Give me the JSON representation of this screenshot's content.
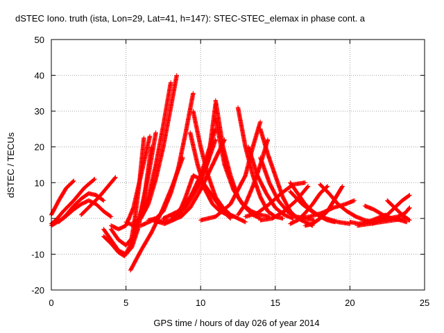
{
  "chart_data": {
    "type": "scatter",
    "title": "dSTEC Iono. truth (ista, Lon=29, Lat=41, h=147): STEC-STEC_elemax in phase cont. a",
    "xlabel": "GPS time / hours of day 026 of year 2014",
    "ylabel": "dSTEC  / TECUs",
    "xlim": [
      0,
      25
    ],
    "ylim": [
      -20,
      50
    ],
    "xticks": [
      "0",
      "5",
      "10",
      "15",
      "20",
      "25"
    ],
    "yticks": [
      "-20",
      "-10",
      "0",
      "10",
      "20",
      "30",
      "40",
      "50"
    ],
    "grid": true,
    "marker": "+",
    "color": "#ff0000",
    "series": [
      {
        "x": [
          0.0,
          0.5,
          1.0,
          1.5
        ],
        "y": [
          1.0,
          5.0,
          8.5,
          10.5
        ]
      },
      {
        "x": [
          0.0,
          0.3,
          0.8,
          1.5,
          2.2,
          2.9
        ],
        "y": [
          -1.5,
          -0.5,
          2.0,
          5.0,
          8.5,
          11.0
        ]
      },
      {
        "x": [
          0.5,
          1.0,
          1.5,
          2.0,
          2.5,
          3.0,
          3.5
        ],
        "y": [
          -1.0,
          1.0,
          3.5,
          5.5,
          7.0,
          6.5,
          5.0
        ]
      },
      {
        "x": [
          2.0,
          2.6,
          3.2,
          3.8,
          4.3
        ],
        "y": [
          1.0,
          3.5,
          6.0,
          9.0,
          11.5
        ]
      },
      {
        "x": [
          0.0,
          0.8,
          1.5,
          2.0,
          2.5,
          3.0,
          3.5,
          4.0
        ],
        "y": [
          -2.0,
          0.0,
          2.5,
          4.0,
          5.0,
          4.0,
          2.0,
          0.5
        ]
      },
      {
        "x": [
          3.5,
          4.0,
          4.5,
          5.0,
          5.4,
          5.8,
          6.2,
          6.7
        ],
        "y": [
          -3.0,
          -6.0,
          -9.0,
          -10.0,
          -8.0,
          -3.0,
          5.0,
          20.0
        ]
      },
      {
        "x": [
          3.5,
          4.0,
          4.5,
          4.9,
          5.3,
          5.6,
          5.9,
          6.2
        ],
        "y": [
          -5.0,
          -7.0,
          -9.5,
          -10.5,
          -7.5,
          0.0,
          10.0,
          22.5
        ]
      },
      {
        "x": [
          4.0,
          4.5,
          5.0,
          5.5,
          6.0,
          6.5,
          7.0
        ],
        "y": [
          -3.0,
          -6.0,
          -7.5,
          -5.0,
          2.0,
          12.0,
          24.0
        ]
      },
      {
        "x": [
          4.0,
          4.5,
          5.0,
          5.5,
          6.0,
          6.6
        ],
        "y": [
          -2.0,
          -3.0,
          -2.0,
          3.0,
          12.0,
          23.0
        ]
      },
      {
        "x": [
          5.0,
          5.5,
          6.0,
          6.5,
          7.0,
          7.5,
          8.0
        ],
        "y": [
          -1.0,
          -2.0,
          0.5,
          6.0,
          15.0,
          26.0,
          38.0
        ]
      },
      {
        "x": [
          5.5,
          6.0,
          6.5,
          7.0,
          7.5,
          8.0,
          8.4
        ],
        "y": [
          -1.0,
          0.0,
          4.0,
          11.0,
          20.0,
          31.0,
          40.0
        ]
      },
      {
        "x": [
          6.5,
          7.0,
          7.5,
          8.0,
          8.5,
          9.0,
          9.5
        ],
        "y": [
          -0.5,
          0.0,
          2.0,
          7.0,
          14.0,
          24.0,
          35.0
        ]
      },
      {
        "x": [
          5.3,
          6.0,
          6.7,
          7.4,
          8.1,
          8.8
        ],
        "y": [
          -14.5,
          -9.0,
          -4.0,
          2.0,
          9.0,
          17.0
        ]
      },
      {
        "x": [
          6.0,
          6.8,
          7.6,
          8.4,
          9.2,
          10.0,
          11.0
        ],
        "y": [
          -2.0,
          -0.5,
          -1.5,
          0.0,
          5.0,
          12.0,
          25.0
        ]
      },
      {
        "x": [
          7.0,
          8.0,
          9.0,
          10.0,
          11.0
        ],
        "y": [
          -1.0,
          -0.5,
          3.0,
          10.0,
          22.0
        ]
      },
      {
        "x": [
          8.0,
          8.7,
          9.3,
          10.0,
          10.8,
          11.6
        ],
        "y": [
          -0.5,
          0.5,
          3.0,
          8.0,
          15.0,
          22.0
        ]
      },
      {
        "x": [
          7.5,
          8.5,
          9.5,
          10.5,
          11.0
        ],
        "y": [
          0.0,
          2.0,
          7.0,
          16.0,
          32.0
        ]
      },
      {
        "x": [
          8.0,
          8.5,
          9.0,
          9.5,
          10.0,
          10.5,
          11.0,
          11.5,
          12.0
        ],
        "y": [
          0.5,
          1.0,
          6.0,
          12.0,
          11.0,
          8.0,
          5.0,
          2.0,
          0.0
        ]
      },
      {
        "x": [
          9.3,
          9.8,
          10.3,
          10.8,
          11.3,
          11.8,
          12.3
        ],
        "y": [
          24.0,
          15.0,
          8.0,
          4.0,
          2.0,
          1.0,
          0.5
        ]
      },
      {
        "x": [
          9.5,
          10.0,
          10.5,
          11.0,
          11.5,
          12.0,
          12.5,
          13.0
        ],
        "y": [
          30.0,
          20.0,
          12.0,
          6.0,
          3.0,
          1.0,
          0.0,
          -1.0
        ]
      },
      {
        "x": [
          11.0,
          11.5,
          12.0,
          12.5,
          13.0,
          13.5,
          14.0
        ],
        "y": [
          33.0,
          20.0,
          12.0,
          6.0,
          3.0,
          1.0,
          0.0
        ]
      },
      {
        "x": [
          11.0,
          11.6,
          12.2,
          12.8,
          13.4,
          14.0,
          14.6
        ],
        "y": [
          28.0,
          15.0,
          8.0,
          4.0,
          2.0,
          1.0,
          0.5
        ]
      },
      {
        "x": [
          12.5,
          13.0,
          13.5,
          14.0,
          14.5,
          15.0,
          15.5
        ],
        "y": [
          31.0,
          20.0,
          12.0,
          6.0,
          2.0,
          0.5,
          0.0
        ]
      },
      {
        "x": [
          13.2,
          13.8,
          14.4,
          15.0,
          15.6,
          16.2
        ],
        "y": [
          20.0,
          12.0,
          7.0,
          3.0,
          1.0,
          0.0
        ]
      },
      {
        "x": [
          10.0,
          11.0,
          12.0,
          13.0,
          13.5,
          14.0
        ],
        "y": [
          -0.5,
          0.5,
          4.0,
          12.0,
          20.0,
          27.0
        ]
      },
      {
        "x": [
          12.5,
          13.0,
          13.5,
          14.0,
          14.5
        ],
        "y": [
          1.0,
          4.0,
          9.0,
          15.0,
          22.0
        ]
      },
      {
        "x": [
          14.0,
          14.5,
          15.0,
          15.5,
          16.0,
          16.5,
          17.0,
          17.5
        ],
        "y": [
          25.0,
          18.0,
          12.0,
          6.0,
          2.0,
          0.0,
          -1.0,
          -2.0
        ]
      },
      {
        "x": [
          14.0,
          14.6,
          15.2,
          15.8,
          16.4,
          17.0,
          17.6
        ],
        "y": [
          17.0,
          10.0,
          5.0,
          2.0,
          0.5,
          0.0,
          -0.5
        ]
      },
      {
        "x": [
          13.0,
          13.8,
          14.6,
          15.4,
          16.2,
          17.0
        ],
        "y": [
          0.5,
          1.5,
          4.0,
          7.0,
          9.5,
          10.0
        ]
      },
      {
        "x": [
          14.0,
          14.8,
          15.6,
          16.4,
          17.2
        ],
        "y": [
          -0.5,
          0.0,
          2.0,
          5.0,
          9.0
        ]
      },
      {
        "x": [
          16.0,
          16.5,
          17.0,
          17.5,
          18.0,
          18.5,
          19.0
        ],
        "y": [
          10.0,
          7.0,
          4.0,
          2.0,
          0.5,
          -0.5,
          -1.0
        ]
      },
      {
        "x": [
          16.0,
          16.8,
          17.6,
          18.4,
          19.2,
          20.0
        ],
        "y": [
          7.5,
          4.0,
          1.5,
          0.0,
          -1.0,
          -1.5
        ]
      },
      {
        "x": [
          17.0,
          17.5,
          18.0,
          18.5,
          19.0,
          19.5
        ],
        "y": [
          -2.0,
          -1.5,
          0.0,
          2.0,
          5.5,
          9.0
        ]
      },
      {
        "x": [
          16.5,
          17.3,
          18.1,
          18.9,
          19.7,
          20.3
        ],
        "y": [
          0.0,
          0.5,
          1.5,
          3.0,
          4.0,
          5.0
        ]
      },
      {
        "x": [
          16.0,
          16.5,
          17.0,
          17.5,
          18.0,
          18.5
        ],
        "y": [
          -1.5,
          -0.5,
          1.5,
          4.0,
          7.0,
          9.0
        ]
      },
      {
        "x": [
          18.0,
          18.6,
          19.2,
          19.8,
          20.4,
          21.0,
          21.6
        ],
        "y": [
          9.5,
          7.0,
          4.0,
          2.0,
          0.5,
          -0.5,
          -1.0
        ]
      },
      {
        "x": [
          20.0,
          20.6,
          21.2,
          21.8,
          22.4
        ],
        "y": [
          -1.0,
          -1.5,
          -1.0,
          0.0,
          1.0
        ]
      },
      {
        "x": [
          21.0,
          21.6,
          22.2,
          22.8,
          23.4,
          23.8
        ],
        "y": [
          3.5,
          2.5,
          1.0,
          0.0,
          -0.5,
          -1.0
        ]
      },
      {
        "x": [
          21.5,
          22.0,
          22.5,
          23.0,
          23.5,
          24.0
        ],
        "y": [
          -1.5,
          -0.5,
          1.0,
          3.0,
          5.0,
          6.5
        ]
      },
      {
        "x": [
          22.0,
          22.6,
          23.2,
          23.7,
          24.0
        ],
        "y": [
          -0.5,
          0.0,
          0.5,
          1.5,
          3.0
        ]
      },
      {
        "x": [
          20.5,
          21.3,
          22.1,
          22.9,
          23.7
        ],
        "y": [
          -2.0,
          -1.5,
          -1.0,
          -0.5,
          0.0
        ]
      },
      {
        "x": [
          22.5,
          23.0,
          23.5,
          24.0
        ],
        "y": [
          5.0,
          3.0,
          1.0,
          -0.5
        ]
      }
    ]
  }
}
